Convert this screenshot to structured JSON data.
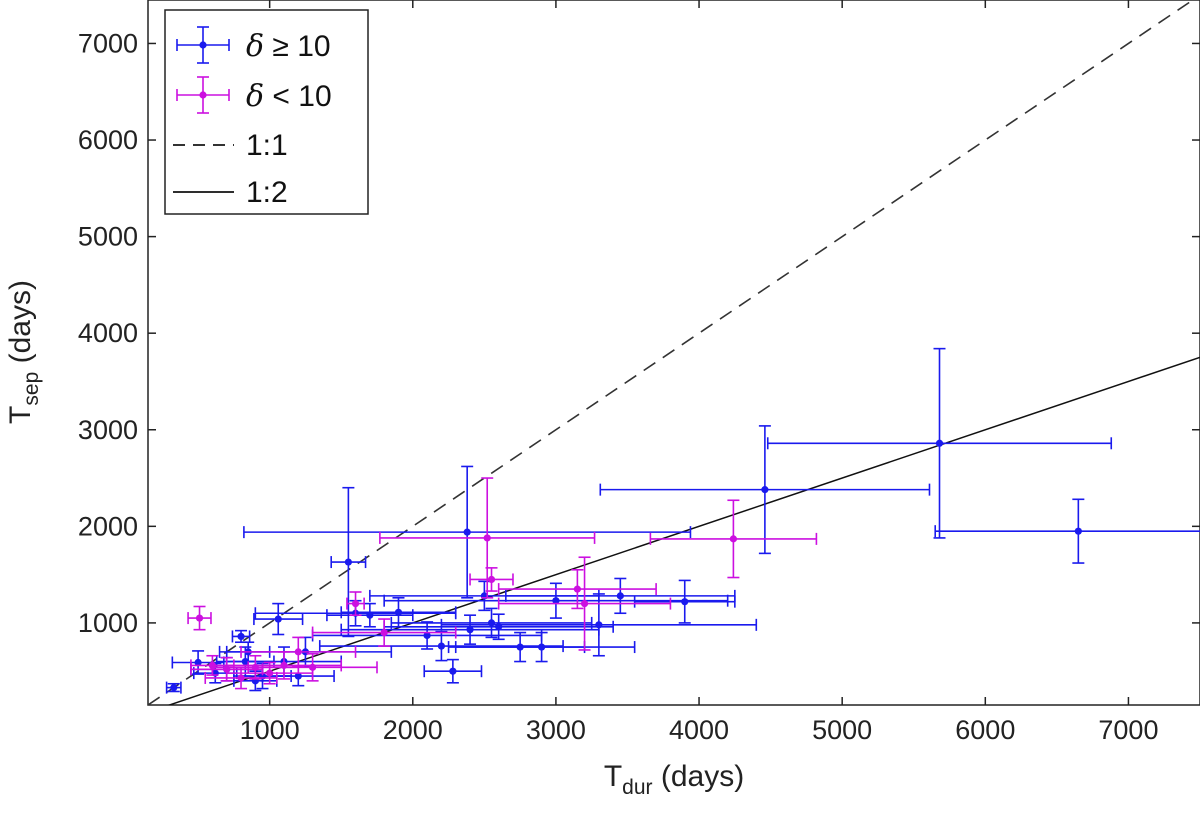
{
  "chart_data": {
    "type": "scatter",
    "title": "",
    "xlabel": {
      "main": "T",
      "sub": "dur",
      "unit": " (days)"
    },
    "ylabel": {
      "main": "T",
      "sub": "sep",
      "unit": " (days)"
    },
    "xlim": [
      150,
      7500
    ],
    "ylim": [
      150,
      7450
    ],
    "xticks": [
      1000,
      2000,
      3000,
      4000,
      5000,
      6000,
      7000
    ],
    "yticks": [
      1000,
      2000,
      3000,
      4000,
      5000,
      6000,
      7000
    ],
    "grid": false,
    "legend_position": "top-left",
    "legend": [
      {
        "symbol": "δ",
        "op": " ≥ ",
        "value": "10",
        "color": "#1a1aee",
        "style": "errorbar"
      },
      {
        "symbol": "δ",
        "op": " < ",
        "value": "10",
        "color": "#cc10e0",
        "style": "errorbar"
      },
      {
        "label": "1:1",
        "color": "#333333",
        "style": "dashed"
      },
      {
        "label": "1:2",
        "color": "#111111",
        "style": "solid"
      }
    ],
    "lines": [
      {
        "name": "1:1",
        "slope": 1.0,
        "dash": true
      },
      {
        "name": "1:2",
        "slope": 0.5,
        "dash": false
      }
    ],
    "series": [
      {
        "color": "#1a1aee",
        "points": [
          {
            "x": 330,
            "y": 330,
            "xerr": 50,
            "yerr": 40
          },
          {
            "x": 500,
            "y": 590,
            "xerr": 180,
            "yerr": 120
          },
          {
            "x": 620,
            "y": 480,
            "xerr": 150,
            "yerr": 100
          },
          {
            "x": 700,
            "y": 520,
            "xerr": 250,
            "yerr": 120
          },
          {
            "x": 800,
            "y": 860,
            "xerr": 60,
            "yerr": 60
          },
          {
            "x": 830,
            "y": 600,
            "xerr": 200,
            "yerr": 150
          },
          {
            "x": 850,
            "y": 700,
            "xerr": 150,
            "yerr": 100
          },
          {
            "x": 900,
            "y": 400,
            "xerr": 150,
            "yerr": 100
          },
          {
            "x": 950,
            "y": 450,
            "xerr": 200,
            "yerr": 130
          },
          {
            "x": 1060,
            "y": 1040,
            "xerr": 170,
            "yerr": 160
          },
          {
            "x": 1100,
            "y": 600,
            "xerr": 400,
            "yerr": 150
          },
          {
            "x": 1200,
            "y": 450,
            "xerr": 250,
            "yerr": 100
          },
          {
            "x": 1250,
            "y": 700,
            "xerr": 600,
            "yerr": 150
          },
          {
            "x": 1550,
            "y": 1630,
            "xerr": 120,
            "yerr": 770
          },
          {
            "x": 1600,
            "y": 1100,
            "xerr": 700,
            "yerr": 130
          },
          {
            "x": 1700,
            "y": 1080,
            "xerr": 300,
            "yerr": 120
          },
          {
            "x": 1900,
            "y": 1110,
            "xerr": 400,
            "yerr": 150
          },
          {
            "x": 2100,
            "y": 870,
            "xerr": 800,
            "yerr": 140
          },
          {
            "x": 2200,
            "y": 760,
            "xerr": 850,
            "yerr": 150
          },
          {
            "x": 2280,
            "y": 500,
            "xerr": 200,
            "yerr": 120
          },
          {
            "x": 2380,
            "y": 1940,
            "xerr": 1560,
            "yerr": 680
          },
          {
            "x": 2400,
            "y": 930,
            "xerr": 900,
            "yerr": 150
          },
          {
            "x": 2500,
            "y": 1280,
            "xerr": 800,
            "yerr": 150
          },
          {
            "x": 2550,
            "y": 1000,
            "xerr": 700,
            "yerr": 150
          },
          {
            "x": 2600,
            "y": 960,
            "xerr": 800,
            "yerr": 130
          },
          {
            "x": 2750,
            "y": 750,
            "xerr": 450,
            "yerr": 150
          },
          {
            "x": 2900,
            "y": 750,
            "xerr": 650,
            "yerr": 150
          },
          {
            "x": 3000,
            "y": 1230,
            "xerr": 1200,
            "yerr": 180
          },
          {
            "x": 3300,
            "y": 980,
            "xerr": 1100,
            "yerr": 320
          },
          {
            "x": 3450,
            "y": 1280,
            "xerr": 800,
            "yerr": 180
          },
          {
            "x": 3900,
            "y": 1220,
            "xerr": 350,
            "yerr": 220
          },
          {
            "x": 4460,
            "y": 2380,
            "xerr": 1150,
            "yerr": 660
          },
          {
            "x": 5680,
            "y": 2860,
            "xerr": 1200,
            "yerr": 980
          },
          {
            "x": 6650,
            "y": 1950,
            "xerr": 1000,
            "yerr": 330
          }
        ]
      },
      {
        "color": "#cc10e0",
        "points": [
          {
            "x": 510,
            "y": 1050,
            "xerr": 80,
            "yerr": 120
          },
          {
            "x": 600,
            "y": 560,
            "xerr": 150,
            "yerr": 100
          },
          {
            "x": 700,
            "y": 520,
            "xerr": 250,
            "yerr": 120
          },
          {
            "x": 800,
            "y": 430,
            "xerr": 250,
            "yerr": 110
          },
          {
            "x": 900,
            "y": 540,
            "xerr": 300,
            "yerr": 120
          },
          {
            "x": 1000,
            "y": 480,
            "xerr": 300,
            "yerr": 110
          },
          {
            "x": 1100,
            "y": 560,
            "xerr": 400,
            "yerr": 140
          },
          {
            "x": 1200,
            "y": 700,
            "xerr": 400,
            "yerr": 150
          },
          {
            "x": 1300,
            "y": 540,
            "xerr": 450,
            "yerr": 140
          },
          {
            "x": 1600,
            "y": 1200,
            "xerr": 60,
            "yerr": 120
          },
          {
            "x": 1800,
            "y": 900,
            "xerr": 500,
            "yerr": 140
          },
          {
            "x": 2520,
            "y": 1880,
            "xerr": 750,
            "yerr": 620
          },
          {
            "x": 2550,
            "y": 1450,
            "xerr": 150,
            "yerr": 120
          },
          {
            "x": 3150,
            "y": 1350,
            "xerr": 550,
            "yerr": 200
          },
          {
            "x": 3200,
            "y": 1200,
            "xerr": 600,
            "yerr": 480
          },
          {
            "x": 4240,
            "y": 1870,
            "xerr": 580,
            "yerr": 400
          }
        ]
      }
    ]
  }
}
